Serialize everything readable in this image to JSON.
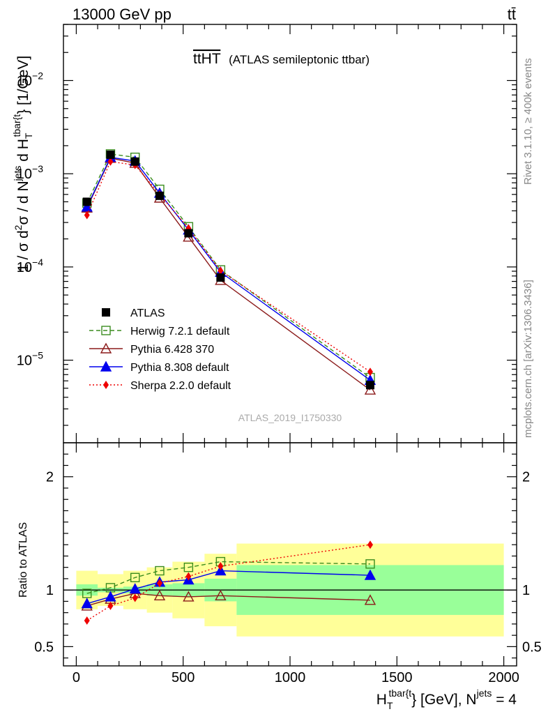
{
  "header": {
    "left": "13000 GeV pp",
    "right": "tt̄"
  },
  "side_labels": {
    "rivet": "Rivet 3.1.10, ≥ 400k events",
    "mcplots": "mcplots.cern.ch [arXiv:1306.3436]"
  },
  "watermark": "ATLAS_2019_I1750330",
  "chart_data": {
    "type": "line",
    "title": "ttHT (ATLAS semileptonic ttbar)",
    "title_main": "ttHT",
    "title_sub": "(ATLAS semileptonic ttbar)",
    "xlabel": "H_T^{tbar{t}} [GeV], N^{jets} = 4",
    "xlabel_parts": {
      "h": "H",
      "t": "T",
      "tbar": "tbar{t",
      "rest": "} [GeV], N",
      "jets": "jets",
      "eq": " = 4"
    },
    "ylabel": "1 / σ d²σ / dN^{jets} d H_T^{tbar{t}} [1/GeV]",
    "ylabel_parts": {
      "a": "1 / σ d",
      "two": "2",
      "b": "σ /  d N",
      "jets": "jets",
      "c": " d H",
      "t": "T",
      "tbar": "tbar{t",
      "d": "} [1/GeV]"
    },
    "ratio_ylabel": "Ratio to ATLAS",
    "xlim": [
      -60,
      2060
    ],
    "ylim_log": [
      1.3e-06,
      0.04
    ],
    "ratio_ylim": [
      0.33,
      2.3
    ],
    "x_ticks": [
      0,
      500,
      1000,
      1500,
      2000
    ],
    "x_tick_labels": [
      "0",
      "500",
      "1000",
      "1500",
      "2000"
    ],
    "y_ticks": [
      1e-05,
      0.0001,
      0.001,
      0.01
    ],
    "y_tick_labels": [
      [
        "10",
        "−5"
      ],
      [
        "10",
        "−4"
      ],
      [
        "10",
        "−3"
      ],
      [
        "10",
        "−2"
      ]
    ],
    "ratio_ticks": [
      0.5,
      1,
      2
    ],
    "ratio_tick_labels": [
      "0.5",
      "1",
      "2"
    ],
    "bins": [
      [
        0,
        100
      ],
      [
        100,
        220
      ],
      [
        220,
        330
      ],
      [
        330,
        450
      ],
      [
        450,
        600
      ],
      [
        600,
        750
      ],
      [
        750,
        2000
      ]
    ],
    "x": [
      50,
      160,
      275,
      390,
      525,
      675,
      1375
    ],
    "legend_position": "center-left",
    "series": [
      {
        "name": "ATLAS",
        "color": "#000000",
        "marker": "square-filled",
        "line": "none",
        "values": [
          0.0005,
          0.0016,
          0.00135,
          0.00058,
          0.00023,
          7.7e-05,
          5.4e-06
        ]
      },
      {
        "name": "Herwig 7.2.1 default",
        "color": "#3a8c1e",
        "marker": "square-open",
        "line": "dashed",
        "values": [
          0.000485,
          0.00163,
          0.0015,
          0.00068,
          0.00027,
          9.3e-05,
          6.5e-06
        ]
      },
      {
        "name": "Pythia 6.428 370",
        "color": "#8b1a1a",
        "marker": "triangle-open",
        "line": "solid",
        "values": [
          0.00043,
          0.00147,
          0.0013,
          0.00055,
          0.00021,
          7.2e-05,
          4.8e-06
        ]
      },
      {
        "name": "Pythia 8.308 default",
        "color": "#0000ee",
        "marker": "triangle-filled",
        "line": "solid",
        "values": [
          0.00044,
          0.0015,
          0.00137,
          0.00062,
          0.00025,
          8.8e-05,
          6.1e-06
        ]
      },
      {
        "name": "Sherpa 2.2.0 default",
        "color": "#ee0000",
        "marker": "diamond-filled",
        "line": "dotted",
        "values": [
          0.00036,
          0.00135,
          0.00124,
          0.0006,
          0.00026,
          9.1e-05,
          7.5e-06
        ]
      }
    ],
    "ratio": {
      "band_inner": [
        0.95,
        0.98,
        1.03,
        1.05,
        1.06,
        1.1,
        1.22
      ],
      "band_inner_low": [
        1.05,
        1.02,
        0.97,
        0.95,
        0.94,
        0.9,
        0.78
      ],
      "band_outer": [
        1.17,
        1.14,
        1.17,
        1.2,
        1.25,
        1.32,
        1.41
      ],
      "band_outer_low": [
        0.83,
        0.86,
        0.83,
        0.8,
        0.75,
        0.68,
        0.59
      ],
      "series": [
        {
          "name": "Herwig 7.2.1 default",
          "values": [
            0.97,
            1.02,
            1.11,
            1.17,
            1.2,
            1.25,
            1.23
          ]
        },
        {
          "name": "Pythia 6.428 370",
          "values": [
            0.86,
            0.92,
            0.97,
            0.95,
            0.94,
            0.95,
            0.91
          ]
        },
        {
          "name": "Pythia 8.308 default",
          "values": [
            0.88,
            0.94,
            1.01,
            1.07,
            1.09,
            1.17,
            1.13
          ]
        },
        {
          "name": "Sherpa 2.2.0 default",
          "values": [
            0.73,
            0.86,
            0.93,
            1.06,
            1.12,
            1.21,
            1.4
          ]
        }
      ]
    }
  }
}
